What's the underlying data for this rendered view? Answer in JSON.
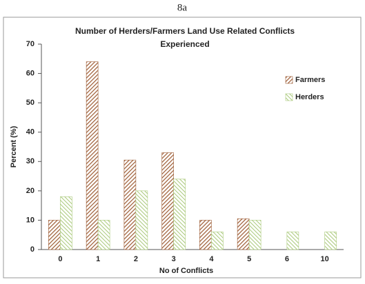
{
  "caption": "8a",
  "chart_data": {
    "type": "bar",
    "title": [
      "Number of Herders/Farmers Land Use Related Conflicts",
      "Experienced"
    ],
    "xlabel": "No of Conflicts",
    "ylabel": "Percent (%)",
    "categories": [
      "0",
      "1",
      "2",
      "3",
      "4",
      "5",
      "6",
      "10"
    ],
    "series": [
      {
        "name": "Farmers",
        "color": "#9c5a32",
        "values": [
          10,
          64,
          30.5,
          33,
          10,
          10.5,
          null,
          null
        ]
      },
      {
        "name": "Herders",
        "color": "#a8c878",
        "values": [
          18,
          10,
          20,
          24,
          6,
          10,
          6,
          6
        ]
      }
    ],
    "ylim": [
      0,
      70
    ],
    "yticks": [
      0,
      10,
      20,
      30,
      40,
      50,
      60,
      70
    ],
    "grid": false,
    "legend": "upper right"
  }
}
